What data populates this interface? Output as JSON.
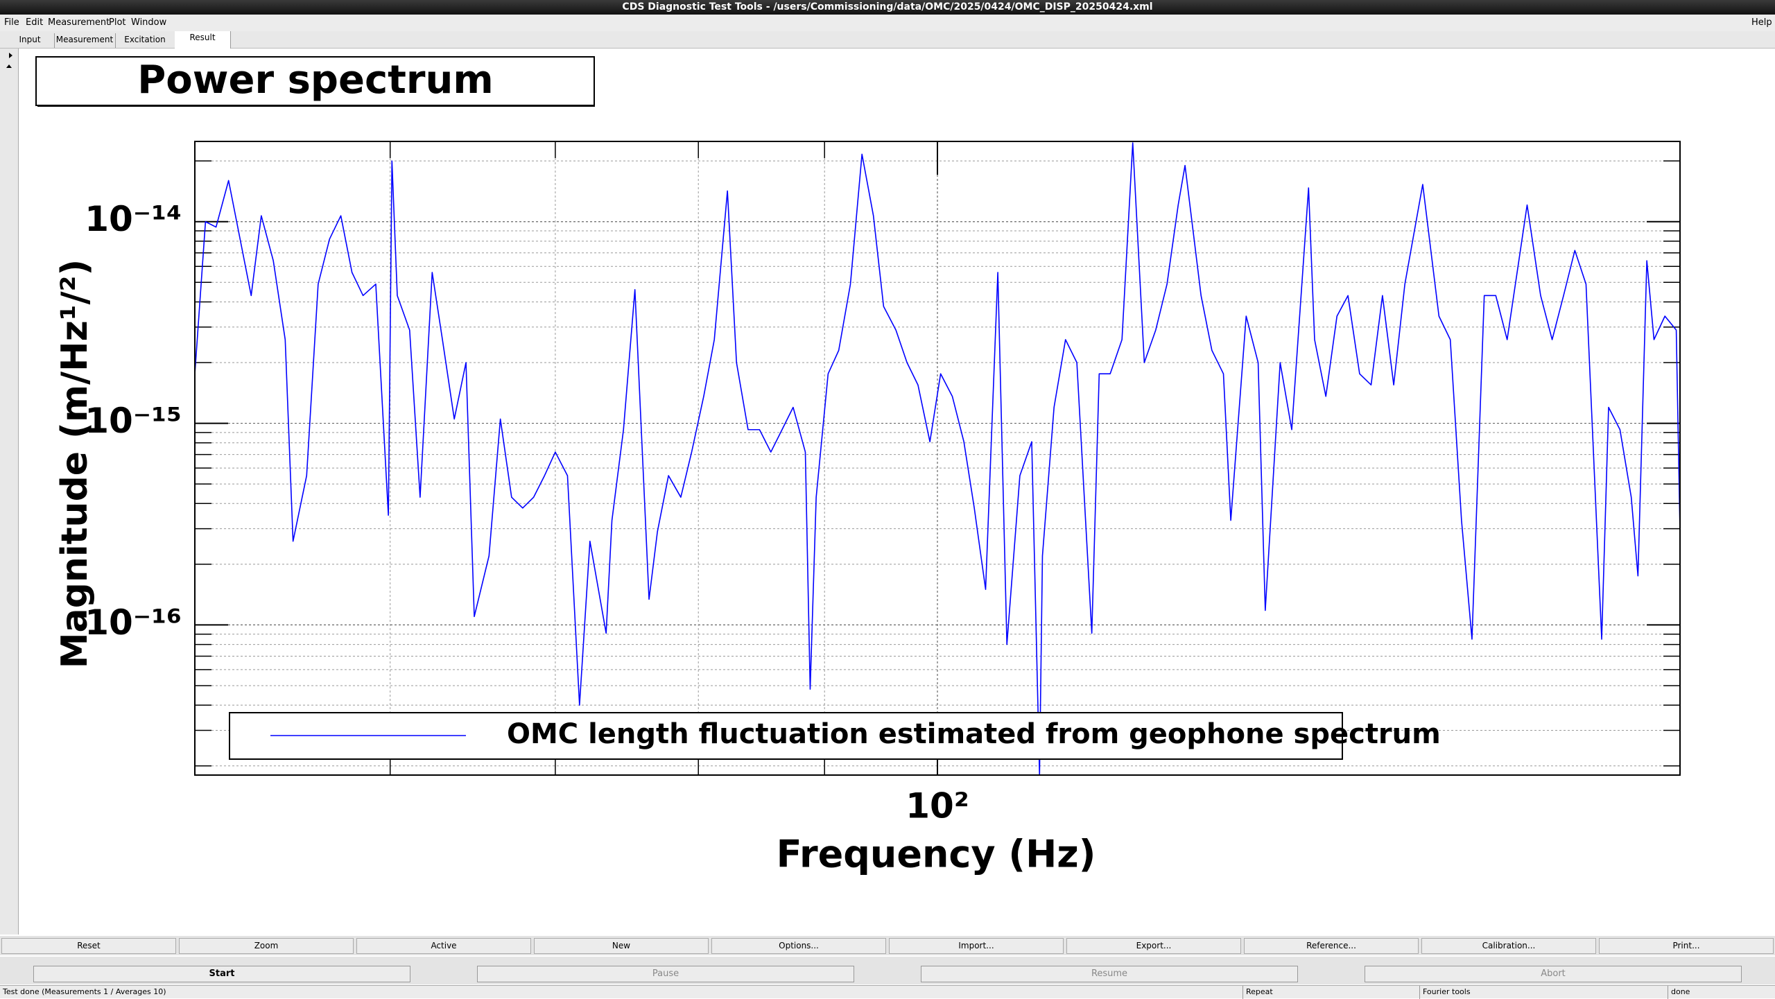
{
  "window": {
    "title": "CDS Diagnostic Test Tools - /users/Commissioning/data/OMC/2025/0424/OMC_DISP_20250424.xml"
  },
  "menu": [
    "File",
    "Edit",
    "Measurement",
    "Plot",
    "Window",
    "Help"
  ],
  "tabs": [
    "Input",
    "Measurement",
    "Excitation",
    "Result"
  ],
  "buttons": [
    "Reset",
    "Zoom",
    "Active",
    "New",
    "Options...",
    "Import...",
    "Export...",
    "Reference...",
    "Calibration...",
    "Print..."
  ],
  "controls": [
    {
      "label": "Start",
      "enabled": true
    },
    {
      "label": "Pause",
      "enabled": false
    },
    {
      "label": "Resume",
      "enabled": false
    },
    {
      "label": "Abort",
      "enabled": false
    }
  ],
  "status": [
    "Test done (Measurements 1 / Averages 10)",
    "Repeat",
    "Fourier tools",
    "done"
  ],
  "chart_data": {
    "type": "line",
    "title": "Power spectrum",
    "x_label": "Frequency (Hz)",
    "y_label": "Magnitude (m/Hz¹/²)",
    "log_x": true,
    "log_y": true,
    "grid": true,
    "xlim": [
      50,
      200
    ],
    "ylim": [
      1.8e-17,
      2.5e-14
    ],
    "xticks": [
      {
        "value": 100,
        "label": "10²"
      }
    ],
    "xminorticks": [
      60,
      70,
      80,
      90
    ],
    "yticks": [
      {
        "value": 1e-16,
        "label": "10⁻¹⁶"
      },
      {
        "value": 1e-15,
        "label": "10⁻¹⁵"
      },
      {
        "value": 1e-14,
        "label": "10⁻¹⁴"
      }
    ],
    "yminorticks": [
      2e-17,
      3e-17,
      4e-17,
      5e-17,
      6e-17,
      7e-17,
      8e-17,
      9e-17,
      2e-16,
      3e-16,
      4e-16,
      5e-16,
      6e-16,
      7e-16,
      8e-16,
      9e-16,
      2e-15,
      3e-15,
      4e-15,
      5e-15,
      6e-15,
      7e-15,
      8e-15,
      9e-15,
      2e-14
    ],
    "x": [
      50.0,
      50.5,
      51.0,
      51.6,
      52.7,
      53.2,
      53.8,
      54.4,
      54.8,
      55.5,
      56.1,
      56.7,
      57.3,
      57.9,
      58.5,
      59.2,
      59.9,
      60.1,
      60.4,
      61.1,
      61.7,
      62.4,
      63.0,
      63.7,
      64.4,
      64.9,
      65.8,
      66.5,
      67.2,
      67.9,
      68.6,
      69.3,
      70.0,
      70.8,
      71.6,
      72.3,
      73.4,
      73.8,
      74.6,
      75.4,
      76.4,
      77.0,
      77.8,
      78.7,
      79.5,
      80.4,
      81.2,
      82.2,
      82.9,
      83.8,
      84.7,
      85.6,
      86.5,
      87.4,
      88.4,
      88.8,
      89.3,
      90.3,
      91.2,
      92.2,
      93.2,
      94.2,
      95.1,
      96.2,
      97.2,
      98.2,
      99.3,
      100.3,
      101.4,
      102.5,
      103.5,
      104.6,
      105.8,
      106.7,
      108.0,
      109.2,
      110.0,
      110.3,
      111.5,
      112.7,
      113.9,
      115.5,
      116.3,
      117.5,
      118.8,
      120.0,
      121.3,
      122.6,
      123.9,
      125.2,
      126.0,
      127.9,
      129.2,
      130.6,
      131.5,
      133.4,
      134.9,
      135.8,
      137.7,
      139.2,
      141.4,
      142.2,
      143.7,
      145.2,
      146.7,
      148.3,
      149.9,
      151.5,
      153.1,
      154.7,
      157.3,
      159.7,
      161.4,
      163.1,
      164.7,
      166.6,
      168.4,
      170.2,
      173.4,
      175.6,
      177.5,
      179.4,
      181.3,
      183.2,
      185.9,
      187.1,
      189.1,
      191.1,
      192.3,
      193.9,
      195.2,
      197.2,
      199.3,
      200
    ],
    "series": [
      {
        "name": "OMC length fluctuation estimated from geophone spectrum",
        "color": "#0000ff",
        "values": [
          1.76e-15,
          1e-14,
          9.4e-15,
          1.6e-14,
          4.3e-15,
          1.07e-14,
          6.4e-15,
          2.6e-15,
          2.6e-16,
          5.5e-16,
          4.9e-15,
          8.2e-15,
          1.07e-14,
          5.6e-15,
          4.3e-15,
          4.9e-15,
          3.5e-16,
          2e-14,
          4.3e-15,
          2.9e-15,
          4.3e-16,
          5.6e-15,
          2.6e-15,
          1.05e-15,
          2e-15,
          1.1e-16,
          2.2e-16,
          1.05e-15,
          4.3e-16,
          3.8e-16,
          4.3e-16,
          5.5e-16,
          7.2e-16,
          5.5e-16,
          4e-17,
          2.6e-16,
          9.1e-17,
          3.3e-16,
          9.3e-16,
          4.6e-15,
          1.34e-16,
          2.9e-16,
          5.5e-16,
          4.3e-16,
          7.2e-16,
          1.36e-15,
          2.6e-15,
          1.42e-14,
          2e-15,
          9.3e-16,
          9.3e-16,
          7.2e-16,
          9.3e-16,
          1.2e-15,
          7.2e-16,
          4.8e-17,
          4.3e-16,
          1.76e-15,
          2.3e-15,
          4.9e-15,
          2.16e-14,
          1.07e-14,
          3.8e-15,
          2.9e-15,
          2e-15,
          1.55e-15,
          8.1e-16,
          1.76e-15,
          1.36e-15,
          8.1e-16,
          3.8e-16,
          1.5e-16,
          5.6e-15,
          8e-17,
          5.5e-16,
          8.1e-16,
          1.8e-17,
          2.2e-16,
          1.2e-15,
          2.6e-15,
          2e-15,
          9.1e-17,
          1.76e-15,
          1.76e-15,
          2.6e-15,
          2.46e-14,
          2e-15,
          2.9e-15,
          4.9e-15,
          1.21e-14,
          1.9e-14,
          4.3e-15,
          2.3e-15,
          1.76e-15,
          3.3e-16,
          3.4e-15,
          2e-15,
          1.18e-16,
          2e-15,
          9.3e-16,
          1.47e-14,
          2.6e-15,
          1.36e-15,
          3.4e-15,
          4.3e-15,
          1.76e-15,
          1.55e-15,
          4.3e-15,
          1.55e-15,
          4.9e-15,
          1.53e-14,
          3.4e-15,
          2.6e-15,
          3.3e-16,
          8.5e-17,
          4.3e-15,
          4.3e-15,
          2.6e-15,
          1.21e-14,
          4.3e-15,
          2.6e-15,
          4.3e-15,
          7.2e-15,
          4.9e-15,
          8.5e-17,
          1.2e-15,
          9.3e-16,
          4.3e-16,
          1.75e-16,
          6.4e-15,
          2.6e-15,
          3.4e-15,
          2.9e-15,
          2.9e-16
        ]
      }
    ]
  }
}
